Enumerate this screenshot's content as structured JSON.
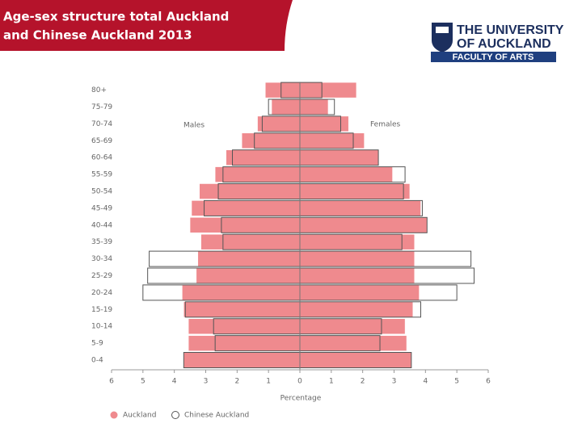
{
  "header": {
    "title_lines": [
      "Age-sex structure total Auckland",
      "and Chinese Auckland 2013"
    ],
    "logo": {
      "line1": "THE UNIVERSITY",
      "line2": "OF AUCKLAND",
      "faculty": "FACULTY OF ARTS"
    }
  },
  "chart_data": {
    "type": "pyramid",
    "categories": [
      "0-4",
      "5-9",
      "10-14",
      "15-19",
      "20-24",
      "25-29",
      "30-34",
      "35-39",
      "40-44",
      "45-49",
      "50-54",
      "55-59",
      "60-64",
      "65-69",
      "70-74",
      "75-79",
      "80+"
    ],
    "left_label": "Males",
    "right_label": "Females",
    "xlabel": "Percentage",
    "series": [
      {
        "name": "Auckland",
        "color": "#ef8a8e",
        "style": "filled",
        "males": [
          3.7,
          3.55,
          3.55,
          3.7,
          3.75,
          3.3,
          3.25,
          3.15,
          3.5,
          3.45,
          3.2,
          2.7,
          2.35,
          1.85,
          1.35,
          0.9,
          1.1
        ],
        "females": [
          3.55,
          3.4,
          3.35,
          3.6,
          3.8,
          3.65,
          3.65,
          3.65,
          4.05,
          3.85,
          3.5,
          2.95,
          2.5,
          2.05,
          1.55,
          0.9,
          1.8
        ]
      },
      {
        "name": "Chinese Auckland",
        "color": "#555555",
        "style": "outline",
        "males": [
          3.7,
          2.7,
          2.75,
          3.65,
          5.0,
          4.85,
          4.8,
          2.45,
          2.5,
          3.05,
          2.6,
          2.45,
          2.15,
          1.45,
          1.2,
          1.0,
          0.6
        ],
        "females": [
          3.55,
          2.55,
          2.6,
          3.85,
          5.0,
          5.55,
          5.45,
          3.25,
          4.05,
          3.9,
          3.3,
          3.35,
          2.5,
          1.7,
          1.3,
          1.1,
          0.7
        ]
      }
    ],
    "xlim": [
      -6,
      6
    ],
    "xticks": [
      {
        "value": -6,
        "label": "6"
      },
      {
        "value": -5,
        "label": "5"
      },
      {
        "value": -4,
        "label": "4"
      },
      {
        "value": -3,
        "label": "3"
      },
      {
        "value": -2,
        "label": "2"
      },
      {
        "value": -1,
        "label": "1"
      },
      0,
      1,
      2,
      3,
      4,
      5,
      6
    ]
  }
}
